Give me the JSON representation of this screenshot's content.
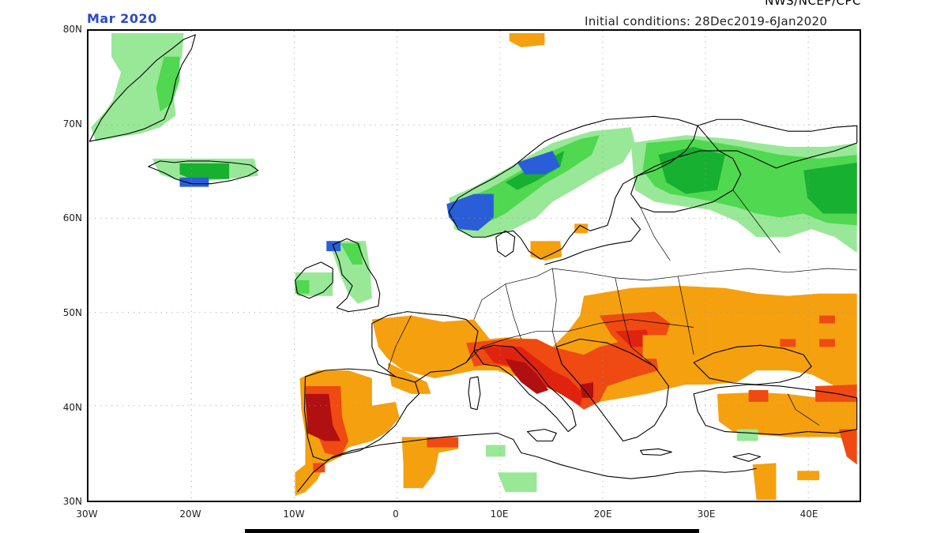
{
  "header": {
    "top_right_partial": "NWS/NCEP/CPC",
    "month": "Mar 2020",
    "initial_conditions": "Initial conditions: 28Dec2019-6Jan2020"
  },
  "axes": {
    "lat_labels": [
      "80N",
      "70N",
      "60N",
      "50N",
      "40N",
      "30N"
    ],
    "lon_labels": [
      "30W",
      "20W",
      "10W",
      "0",
      "10E",
      "20E",
      "30E",
      "40E"
    ]
  },
  "map": {
    "region": "Europe",
    "lon_range": [
      -30,
      45
    ],
    "lat_range": [
      30,
      80
    ],
    "grid": "dotted, 10 degree",
    "colors": {
      "light_green": "#98e898",
      "green": "#50d850",
      "dark_green": "#18b030",
      "blue": "#2a5ed8",
      "orange": "#f5a00f",
      "red_orange": "#ee4a12",
      "red": "#e0230f",
      "dark_red": "#b01010"
    }
  },
  "colorbar": {
    "shown": "partial strip at bottom edge"
  }
}
